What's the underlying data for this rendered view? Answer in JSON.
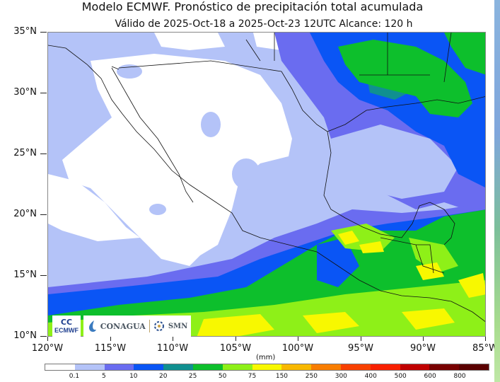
{
  "title": "Modelo ECMWF. Pronóstico de precipitación total acumulada",
  "subtitle": "Válido de 2025-Oct-18 a 2025-Oct-23 12UTC   Alcance: 120 h",
  "axes": {
    "y_ticks": [
      "35°N",
      "30°N",
      "25°N",
      "20°N",
      "15°N",
      "10°N"
    ],
    "x_ticks": [
      "120°W",
      "115°W",
      "110°W",
      "105°W",
      "100°W",
      "95°W",
      "90°W",
      "85°W"
    ],
    "units_label": "(mm)",
    "lat_range": [
      10,
      35
    ],
    "lon_range": [
      -120,
      -85
    ]
  },
  "colorbar": {
    "colors": [
      "#ffffff",
      "#b4c3f8",
      "#6a6cf0",
      "#0a55f5",
      "#109090",
      "#0dbf2c",
      "#8ef018",
      "#f8f800",
      "#f8b800",
      "#f87d00",
      "#f84000",
      "#f82000",
      "#c00000",
      "#780000",
      "#5a0000"
    ],
    "tick_labels": [
      "0.1",
      "5",
      "10",
      "20",
      "25",
      "50",
      "75",
      "150",
      "250",
      "300",
      "400",
      "500",
      "600",
      "800"
    ]
  },
  "logos": {
    "ecmwf_mark": "CC",
    "ecmwf": "ECMWF",
    "conagua": "CONAGUA",
    "smn": "SMN"
  }
}
